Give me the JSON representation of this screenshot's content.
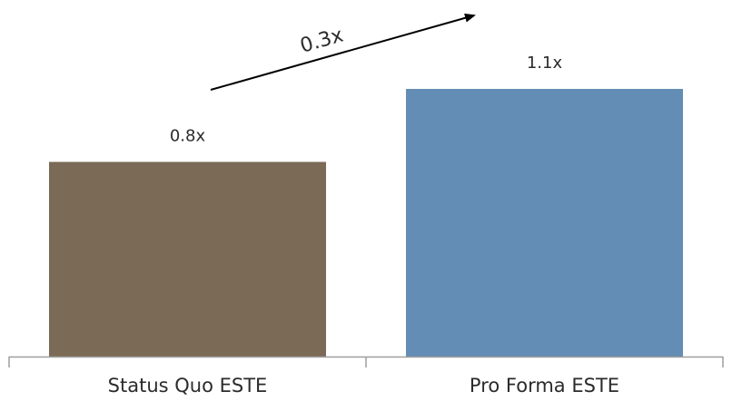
{
  "chart_data": {
    "type": "bar",
    "title": "",
    "xlabel": "",
    "ylabel": "",
    "categories": [
      "Status Quo ESTE",
      "Pro Forma ESTE"
    ],
    "values": [
      0.8,
      1.1
    ],
    "data_labels": [
      "0.8x",
      "1.1x"
    ],
    "ylim": [
      0,
      1.1
    ],
    "grid": false,
    "legend": "none",
    "colors": [
      "#7a6a56",
      "#638db5"
    ],
    "annotation": {
      "text": "0.3x",
      "meaning": "increase from Status Quo ESTE to Pro Forma ESTE"
    }
  }
}
